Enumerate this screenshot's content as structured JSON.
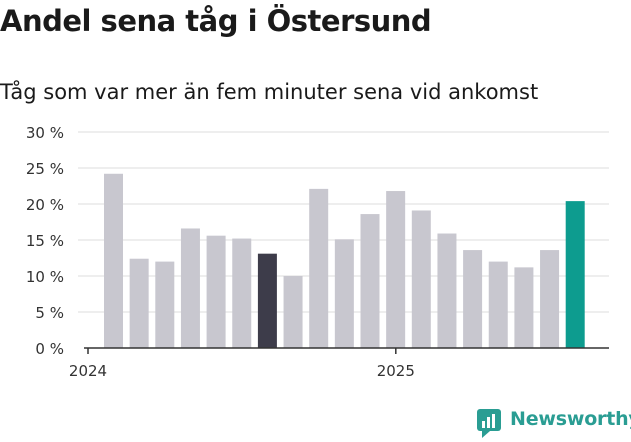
{
  "brand": {
    "name": "Newsworthy",
    "color": "#2a9d93"
  },
  "chart_data": {
    "type": "bar",
    "title": "Andel sena tåg i Östersund",
    "subtitle": "Tåg som var mer än fem minuter sena vid ankomst",
    "y_unit": "%",
    "ylim": [
      0,
      30
    ],
    "y_ticks": [
      {
        "value": 0,
        "label": "0 %"
      },
      {
        "value": 5,
        "label": "5 %"
      },
      {
        "value": 10,
        "label": "10 %"
      },
      {
        "value": 15,
        "label": "15 %"
      },
      {
        "value": 20,
        "label": "20 %"
      },
      {
        "value": 25,
        "label": "25 %"
      },
      {
        "value": 30,
        "label": "30 %"
      }
    ],
    "x_ticks": [
      {
        "index": 0,
        "label": "2024"
      },
      {
        "index": 12,
        "label": "2025"
      }
    ],
    "grid": true,
    "colors": {
      "default": "#c8c7cf",
      "highlight_dark": "#3d3c4a",
      "highlight_latest": "#0d9c8f"
    },
    "bars": [
      {
        "value": 24.2,
        "color": "default"
      },
      {
        "value": 12.4,
        "color": "default"
      },
      {
        "value": 12.0,
        "color": "default"
      },
      {
        "value": 16.6,
        "color": "default"
      },
      {
        "value": 15.6,
        "color": "default"
      },
      {
        "value": 15.2,
        "color": "default"
      },
      {
        "value": 13.1,
        "color": "highlight_dark"
      },
      {
        "value": 10.0,
        "color": "default"
      },
      {
        "value": 22.1,
        "color": "default"
      },
      {
        "value": 15.1,
        "color": "default"
      },
      {
        "value": 18.6,
        "color": "default"
      },
      {
        "value": 21.8,
        "color": "default"
      },
      {
        "value": 19.1,
        "color": "default"
      },
      {
        "value": 15.9,
        "color": "default"
      },
      {
        "value": 13.6,
        "color": "default"
      },
      {
        "value": 12.0,
        "color": "default"
      },
      {
        "value": 11.2,
        "color": "default"
      },
      {
        "value": 13.6,
        "color": "default"
      },
      {
        "value": 20.4,
        "color": "highlight_latest"
      }
    ]
  }
}
